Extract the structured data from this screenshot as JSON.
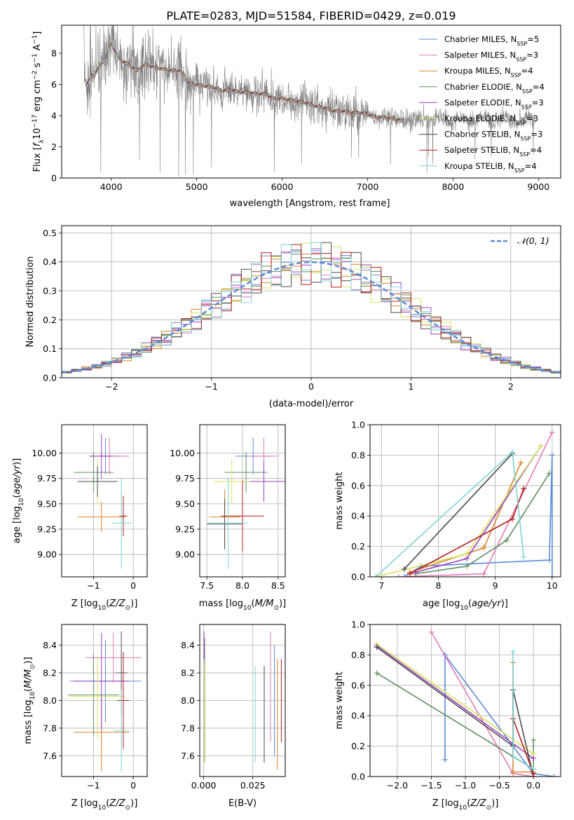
{
  "title": "PLATE=0283, MJD=51584, FIBERID=0429, z=0.019",
  "colors": {
    "Chabrier MILES": "#5b8ad8",
    "Salpeter MILES": "#e07ab4",
    "Kroupa MILES": "#d9842a",
    "Chabrier ELODIE": "#5e8f5e",
    "Salpeter ELODIE": "#9b3fc0",
    "Kroupa ELODIE": "#d8e25c",
    "Chabrier STELIB": "#4a4a4a",
    "Salpeter STELIB": "#b31b1b",
    "Kroupa STELIB": "#7ed3d3",
    "data": "#808080"
  },
  "chart_data": [
    {
      "id": "spectrum",
      "type": "line",
      "xlabel": "wavelength [Angstrom, rest frame]",
      "ylabel_parts": [
        "Flux [",
        "f",
        "λ",
        "10",
        "−17",
        " erg cm",
        "−2",
        " s",
        "−1",
        " A",
        "−1",
        "]"
      ],
      "xlim": [
        3420,
        9260
      ],
      "ylim": [
        0,
        9.8
      ],
      "xticks": [
        4000,
        5000,
        6000,
        7000,
        8000,
        9000
      ],
      "yticks": [
        0,
        2,
        4,
        6,
        8
      ],
      "model_x": [
        3700,
        3800,
        3900,
        4000,
        4100,
        4200,
        4300,
        4400,
        4500,
        4600,
        4700,
        4800,
        4860,
        4900,
        5000,
        5100,
        5200,
        5300,
        5400,
        5500,
        5600,
        5700,
        5800,
        5900,
        6000,
        6100,
        6200,
        6300,
        6400,
        6500,
        6600,
        6700,
        6800,
        6900,
        7000,
        7100,
        7200,
        7300,
        7400,
        7420
      ],
      "model_y": [
        6.0,
        6.7,
        7.4,
        8.6,
        7.6,
        7.3,
        6.9,
        7.3,
        7.1,
        7.0,
        6.9,
        6.9,
        6.6,
        6.1,
        6.0,
        5.9,
        5.8,
        5.6,
        5.7,
        5.5,
        5.5,
        5.4,
        5.4,
        5.1,
        5.1,
        5.0,
        4.9,
        4.8,
        4.6,
        4.5,
        4.3,
        4.3,
        4.2,
        4.2,
        4.1,
        3.9,
        3.9,
        3.8,
        3.7,
        3.7
      ],
      "legend": [
        {
          "label": "Chabrier MILES",
          "nssp": "5"
        },
        {
          "label": "Salpeter MILES",
          "nssp": "3"
        },
        {
          "label": "Kroupa MILES",
          "nssp": "4"
        },
        {
          "label": "Chabrier ELODIE",
          "nssp": "4"
        },
        {
          "label": "Salpeter ELODIE",
          "nssp": "3"
        },
        {
          "label": "Kroupa ELODIE",
          "nssp": "3"
        },
        {
          "label": "Chabrier STELIB",
          "nssp": "3"
        },
        {
          "label": "Salpeter STELIB",
          "nssp": "4"
        },
        {
          "label": "Kroupa STELIB",
          "nssp": "4"
        }
      ],
      "legend_prefix": "N",
      "legend_sub": "SSP"
    },
    {
      "id": "residuals",
      "type": "line",
      "xlabel": "(data-model)/error",
      "ylabel": "Normed distribution",
      "xlim": [
        -2.5,
        2.5
      ],
      "ylim": [
        0,
        0.525
      ],
      "xticks": [
        -2,
        -1,
        0,
        1,
        2
      ],
      "yticks": [
        0.0,
        0.1,
        0.2,
        0.3,
        0.4,
        0.5
      ],
      "gaussian_label": "𝒩(0, 1)",
      "bin_width": 0.1,
      "grid": true,
      "legend_placement": "top-right"
    },
    {
      "id": "age-vs-Z",
      "type": "scatter",
      "xlabel_parts": [
        "Z [log",
        "10",
        "(",
        "Z/Z",
        "⊙",
        ")]"
      ],
      "ylabel_parts": [
        "age  [log",
        "10",
        "(",
        "age/yr",
        ")]"
      ],
      "xlim": [
        -1.8,
        0.35
      ],
      "ylim": [
        8.78,
        10.28
      ],
      "xticks": [
        -1,
        0
      ],
      "yticks": [
        "9.00",
        "9.25",
        "9.50",
        "9.75",
        "10.00"
      ],
      "series": [
        {
          "name": "Chabrier MILES",
          "x": -0.7,
          "y": 9.97,
          "xerr": 0.4,
          "yerr": 0.18
        },
        {
          "name": "Salpeter MILES",
          "x": -0.6,
          "y": 9.97,
          "xerr": 0.5,
          "yerr": 0.18
        },
        {
          "name": "Kroupa MILES",
          "x": -0.8,
          "y": 9.37,
          "xerr": 0.6,
          "yerr": 0.15
        },
        {
          "name": "Chabrier ELODIE",
          "x": -1.0,
          "y": 9.81,
          "xerr": 0.5,
          "yerr": 0.2
        },
        {
          "name": "Salpeter ELODIE",
          "x": -0.8,
          "y": 9.97,
          "xerr": 0.3,
          "yerr": 0.22
        },
        {
          "name": "Kroupa ELODIE",
          "x": -0.9,
          "y": 9.72,
          "xerr": 0.4,
          "yerr": 0.22
        },
        {
          "name": "Chabrier STELIB",
          "x": -0.9,
          "y": 9.72,
          "xerr": 0.5,
          "yerr": 0.15
        },
        {
          "name": "Salpeter STELIB",
          "x": -0.25,
          "y": 9.38,
          "xerr": 0.1,
          "yerr": 0.2
        },
        {
          "name": "Kroupa STELIB",
          "x": -0.3,
          "y": 9.31,
          "xerr": 0.25,
          "yerr": 0.45
        }
      ]
    },
    {
      "id": "age-vs-mass",
      "type": "scatter",
      "xlabel_parts": [
        "mass [log",
        "10",
        "(",
        "M/M",
        "⊙",
        ")]"
      ],
      "xlim": [
        7.4,
        8.6
      ],
      "ylim": [
        8.78,
        10.28
      ],
      "xticks": [
        "7.5",
        "8.0",
        "8.5"
      ],
      "yticks": [
        "9.00",
        "9.25",
        "9.50",
        "9.75",
        "10.00"
      ],
      "series": [
        {
          "name": "Chabrier MILES",
          "x": 8.15,
          "y": 9.97,
          "xerr": 0.25,
          "yerr": 0.18
        },
        {
          "name": "Salpeter MILES",
          "x": 8.3,
          "y": 9.97,
          "xerr": 0.2,
          "yerr": 0.18
        },
        {
          "name": "Kroupa MILES",
          "x": 7.75,
          "y": 9.37,
          "xerr": 0.22,
          "yerr": 0.27
        },
        {
          "name": "Chabrier ELODIE",
          "x": 8.05,
          "y": 9.81,
          "xerr": 0.3,
          "yerr": 0.2
        },
        {
          "name": "Salpeter ELODIE",
          "x": 8.3,
          "y": 9.72,
          "xerr": 0.3,
          "yerr": 0.2
        },
        {
          "name": "Kroupa ELODIE",
          "x": 7.85,
          "y": 9.72,
          "xerr": 0.25,
          "yerr": 0.22
        },
        {
          "name": "Chabrier STELIB",
          "x": 7.75,
          "y": 9.3,
          "xerr": 0.25,
          "yerr": 0.25
        },
        {
          "name": "Salpeter STELIB",
          "x": 8.0,
          "y": 9.38,
          "xerr": 0.3,
          "yerr": 0.35
        },
        {
          "name": "Kroupa STELIB",
          "x": 7.8,
          "y": 9.31,
          "xerr": 0.28,
          "yerr": 0.45
        }
      ]
    },
    {
      "id": "weights-vs-age",
      "type": "line",
      "xlabel_parts": [
        "age  [log",
        "10",
        "(",
        "age/yr",
        ")]"
      ],
      "ylabel": "mass weight",
      "xlim": [
        6.8,
        10.15
      ],
      "ylim": [
        0,
        1.0
      ],
      "xticks": [
        7,
        8,
        9,
        10
      ],
      "yticks": [
        "0.0",
        "0.2",
        "0.4",
        "0.6",
        "0.8",
        "1.0"
      ],
      "grid": true,
      "series": [
        {
          "name": "Chabrier MILES",
          "x": [
            7.4,
            7.7,
            9.95,
            10.0,
            10.0
          ],
          "y": [
            0.0,
            0.07,
            0.11,
            0.8,
            0.0
          ]
        },
        {
          "name": "Salpeter MILES",
          "x": [
            7.3,
            8.8,
            10.0
          ],
          "y": [
            0.0,
            0.02,
            0.95
          ]
        },
        {
          "name": "Kroupa MILES",
          "x": [
            7.5,
            8.8,
            9.45
          ],
          "y": [
            0.03,
            0.19,
            0.75
          ]
        },
        {
          "name": "Chabrier ELODIE",
          "x": [
            7.6,
            8.5,
            9.2,
            9.95
          ],
          "y": [
            0.02,
            0.07,
            0.24,
            0.68
          ]
        },
        {
          "name": "Salpeter ELODIE",
          "x": [
            7.6,
            8.5,
            9.8
          ],
          "y": [
            0.03,
            0.12,
            0.86
          ]
        },
        {
          "name": "Kroupa ELODIE",
          "x": [
            6.9,
            8.5,
            9.8
          ],
          "y": [
            0.0,
            0.15,
            0.86
          ]
        },
        {
          "name": "Chabrier STELIB",
          "x": [
            7.4,
            9.3
          ],
          "y": [
            0.05,
            0.81
          ]
        },
        {
          "name": "Salpeter STELIB",
          "x": [
            7.5,
            9.3,
            9.5
          ],
          "y": [
            0.02,
            0.38,
            0.58
          ]
        },
        {
          "name": "Kroupa STELIB",
          "x": [
            6.9,
            9.3,
            9.5
          ],
          "y": [
            0.0,
            0.82,
            0.13
          ]
        }
      ]
    },
    {
      "id": "mass-vs-Z",
      "type": "scatter",
      "xlabel_parts": [
        "Z [log",
        "10",
        "(",
        "Z/Z",
        "⊙",
        ")]"
      ],
      "ylabel_parts": [
        "mass [log",
        "10",
        "(",
        "M/M",
        "⊙",
        ")]"
      ],
      "xlim": [
        -1.8,
        0.35
      ],
      "ylim": [
        7.45,
        8.55
      ],
      "xticks": [
        -1,
        0
      ],
      "yticks": [
        "7.6",
        "7.8",
        "8.0",
        "8.2",
        "8.4"
      ],
      "series": [
        {
          "name": "Chabrier MILES",
          "x": -0.7,
          "y": 8.14,
          "xerr": 0.9,
          "yerr": 0.3
        },
        {
          "name": "Salpeter MILES",
          "x": -0.5,
          "y": 8.31,
          "xerr": 0.7,
          "yerr": 0.18
        },
        {
          "name": "Kroupa MILES",
          "x": -0.8,
          "y": 7.77,
          "xerr": 0.7,
          "yerr": 0.28
        },
        {
          "name": "Chabrier ELODIE",
          "x": -1.0,
          "y": 8.04,
          "xerr": 0.65,
          "yerr": 0.3
        },
        {
          "name": "Salpeter ELODIE",
          "x": -0.8,
          "y": 8.14,
          "xerr": 0.7,
          "yerr": 0.35
        },
        {
          "name": "Kroupa ELODIE",
          "x": -0.9,
          "y": 8.03,
          "xerr": 0.7,
          "yerr": 0.3
        },
        {
          "name": "Chabrier STELIB",
          "x": -0.3,
          "y": 8.2,
          "xerr": 0.15,
          "yerr": 0.3
        },
        {
          "name": "Salpeter STELIB",
          "x": -0.25,
          "y": 8.0,
          "xerr": 0.15,
          "yerr": 0.35
        },
        {
          "name": "Kroupa STELIB",
          "x": -0.3,
          "y": 7.78,
          "xerr": 0.2,
          "yerr": 0.3
        }
      ]
    },
    {
      "id": "mass-vs-ebv",
      "type": "scatter",
      "xlabel": "E(B-V)",
      "xlim": [
        -0.002,
        0.0415
      ],
      "ylim": [
        7.45,
        8.55
      ],
      "xticks": [
        "0.000",
        "0.025"
      ],
      "xtick_values": [
        0.0,
        0.025
      ],
      "yticks": [
        "7.6",
        "7.8",
        "8.0",
        "8.2",
        "8.4"
      ],
      "series": [
        {
          "name": "Chabrier MILES",
          "x": 0.036,
          "y": 8.0,
          "yerr": 0.4
        },
        {
          "name": "Salpeter MILES",
          "x": 0.034,
          "y": 8.1,
          "yerr": 0.4
        },
        {
          "name": "Kroupa MILES",
          "x": 0.0375,
          "y": 7.9,
          "yerr": 0.4
        },
        {
          "name": "Chabrier ELODIE",
          "x": 0.0005,
          "y": 8.0,
          "yerr": 0.45
        },
        {
          "name": "Salpeter ELODIE",
          "x": 0.0002,
          "y": 8.4,
          "yerr": 0.1
        },
        {
          "name": "Kroupa ELODIE",
          "x": 0.0003,
          "y": 7.9,
          "yerr": 0.35
        },
        {
          "name": "Chabrier STELIB",
          "x": 0.0308,
          "y": 7.9,
          "yerr": 0.35
        },
        {
          "name": "Salpeter STELIB",
          "x": 0.0395,
          "y": 8.0,
          "yerr": 0.3
        },
        {
          "name": "Kroupa STELIB",
          "x": 0.0262,
          "y": 7.9,
          "yerr": 0.35
        }
      ]
    },
    {
      "id": "weights-vs-Z",
      "type": "line",
      "xlabel_parts": [
        "Z [log",
        "10",
        "(",
        "Z/Z",
        "⊙",
        ")]"
      ],
      "ylabel": "mass weight",
      "xlim": [
        -2.4,
        0.4
      ],
      "ylim": [
        0,
        1.0
      ],
      "xticks": [
        "−2.0",
        "−1.5",
        "−1.0",
        "−0.5",
        "0.0"
      ],
      "xtick_values": [
        -2.0,
        -1.5,
        -1.0,
        -0.5,
        0.0
      ],
      "yticks": [
        "0.0",
        "0.2",
        "0.4",
        "0.6",
        "0.8",
        "1.0"
      ],
      "grid": true,
      "series": [
        {
          "name": "Chabrier MILES",
          "x": [
            -1.3,
            -1.3,
            0.0,
            0.3
          ],
          "y": [
            0.11,
            0.8,
            0.02,
            0.0
          ]
        },
        {
          "name": "Salpeter MILES",
          "x": [
            -1.5,
            -0.3,
            0.0
          ],
          "y": [
            0.95,
            0.02,
            0.0
          ]
        },
        {
          "name": "Kroupa MILES",
          "x": [
            -0.3,
            -0.3,
            0.0
          ],
          "y": [
            0.75,
            0.03,
            0.03
          ]
        },
        {
          "name": "Chabrier ELODIE",
          "x": [
            -2.3,
            0.0,
            0.0
          ],
          "y": [
            0.68,
            0.05,
            0.24
          ]
        },
        {
          "name": "Salpeter ELODIE",
          "x": [
            -2.3,
            0.0
          ],
          "y": [
            0.86,
            0.12
          ]
        },
        {
          "name": "Kroupa ELODIE",
          "x": [
            -2.3,
            0.0
          ],
          "y": [
            0.87,
            0.15
          ]
        },
        {
          "name": "Chabrier STELIB",
          "x": [
            -2.3,
            -0.3,
            -0.3,
            0.0
          ],
          "y": [
            0.85,
            0.2,
            0.57,
            0.0
          ]
        },
        {
          "name": "Salpeter STELIB",
          "x": [
            -0.3,
            0.0,
            0.0
          ],
          "y": [
            0.38,
            0.02,
            0.0
          ]
        },
        {
          "name": "Kroupa STELIB",
          "x": [
            -0.3,
            -0.3,
            0.0
          ],
          "y": [
            0.82,
            0.13,
            0.05
          ]
        }
      ]
    }
  ]
}
